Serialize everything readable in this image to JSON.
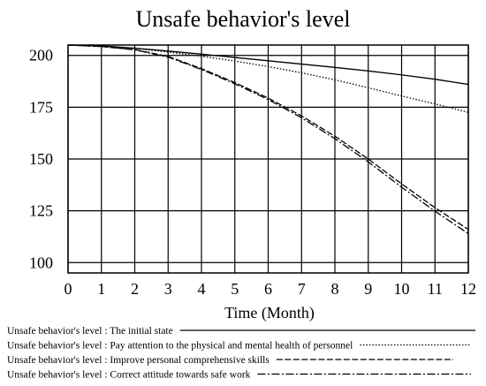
{
  "chart_data": {
    "type": "line",
    "title": "Unsafe behavior's level",
    "xlabel": "Time (Month)",
    "ylabel": "",
    "xlim": [
      0,
      12
    ],
    "ylim": [
      95,
      205
    ],
    "xticks": [
      0,
      1,
      2,
      3,
      4,
      5,
      6,
      7,
      8,
      9,
      10,
      11,
      12
    ],
    "yticks": [
      100,
      125,
      150,
      175,
      200
    ],
    "x_gridlines": [
      0,
      1,
      2,
      3,
      4,
      5,
      6,
      7,
      8,
      9,
      10,
      11,
      12
    ],
    "y_gridlines": [
      100,
      125,
      150,
      175,
      200
    ],
    "grid": true,
    "legend_position": "bottom",
    "x": [
      0,
      1,
      2,
      3,
      4,
      5,
      6,
      7,
      8,
      9,
      10,
      11,
      12
    ],
    "series": [
      {
        "name": "Unsafe behavior's level : The initial state",
        "style": "solid",
        "values": [
          205,
          204.6,
          203.5,
          202.1,
          200.6,
          199.0,
          197.4,
          195.8,
          194.2,
          192.5,
          190.6,
          188.5,
          186
        ]
      },
      {
        "name": "Unsafe behavior's level : Pay attention to the physical and mental health of personnel",
        "style": "dotted",
        "values": [
          205,
          204.5,
          203.4,
          201.6,
          199.6,
          197.3,
          194.6,
          191.6,
          188.2,
          184.4,
          180.4,
          176.6,
          172.5
        ]
      },
      {
        "name": "Unsafe behavior's level : Improve personal comprehensive skills",
        "style": "dashed",
        "values": [
          205,
          204.3,
          202.8,
          199.5,
          193.6,
          186.9,
          179.4,
          170.8,
          161.0,
          150.0,
          138.0,
          126.5,
          116
        ]
      },
      {
        "name": "Unsafe behavior's level : Correct attitude towards safe work",
        "style": "dashdot",
        "values": [
          205,
          204.3,
          202.7,
          199.2,
          193.2,
          186.3,
          178.7,
          169.9,
          159.8,
          148.6,
          136.4,
          124.8,
          114
        ]
      }
    ]
  }
}
